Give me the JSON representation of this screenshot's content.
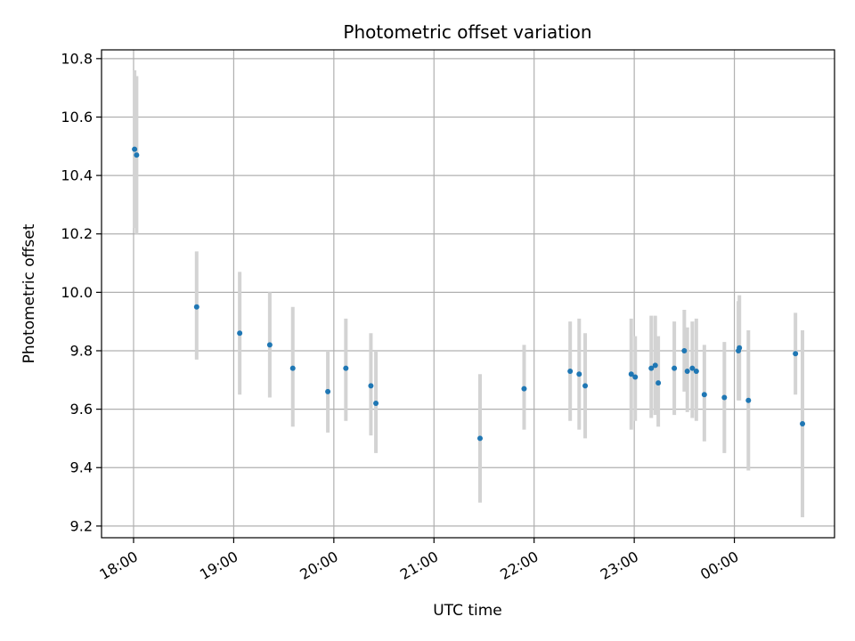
{
  "chart_data": {
    "type": "scatter",
    "title": "Photometric offset variation",
    "xlabel": "UTC time",
    "ylabel": "Photometric offset",
    "grid": true,
    "legend": "none",
    "x_axis_unit": "hours since 18:00 UTC",
    "xlim": [
      -0.32,
      7.0
    ],
    "ylim": [
      9.16,
      10.83
    ],
    "x_ticks": [
      0,
      1,
      2,
      3,
      4,
      5,
      6
    ],
    "x_tick_labels": [
      "18:00",
      "19:00",
      "20:00",
      "21:00",
      "22:00",
      "23:00",
      "00:00"
    ],
    "y_ticks": [
      9.2,
      9.4,
      9.6,
      9.8,
      10.0,
      10.2,
      10.4,
      10.6,
      10.8
    ],
    "y_tick_labels": [
      "9.2",
      "9.4",
      "9.6",
      "9.8",
      "10.0",
      "10.2",
      "10.4",
      "10.6",
      "10.8"
    ],
    "marker_color": "#1f77b4",
    "errorbar_color": "#d3d3d3",
    "points": [
      {
        "x": 0.01,
        "y": 10.49,
        "ylo": 10.22,
        "yhi": 10.76
      },
      {
        "x": 0.03,
        "y": 10.47,
        "ylo": 10.2,
        "yhi": 10.74
      },
      {
        "x": 0.63,
        "y": 9.95,
        "ylo": 9.77,
        "yhi": 10.14
      },
      {
        "x": 1.06,
        "y": 9.86,
        "ylo": 9.65,
        "yhi": 10.07
      },
      {
        "x": 1.36,
        "y": 9.82,
        "ylo": 9.64,
        "yhi": 10.0
      },
      {
        "x": 1.59,
        "y": 9.74,
        "ylo": 9.54,
        "yhi": 9.95
      },
      {
        "x": 1.94,
        "y": 9.66,
        "ylo": 9.52,
        "yhi": 9.8
      },
      {
        "x": 2.12,
        "y": 9.74,
        "ylo": 9.56,
        "yhi": 9.91
      },
      {
        "x": 2.37,
        "y": 9.68,
        "ylo": 9.51,
        "yhi": 9.86
      },
      {
        "x": 2.42,
        "y": 9.62,
        "ylo": 9.45,
        "yhi": 9.8
      },
      {
        "x": 3.46,
        "y": 9.5,
        "ylo": 9.28,
        "yhi": 9.72
      },
      {
        "x": 3.9,
        "y": 9.67,
        "ylo": 9.53,
        "yhi": 9.82
      },
      {
        "x": 4.36,
        "y": 9.73,
        "ylo": 9.56,
        "yhi": 9.9
      },
      {
        "x": 4.45,
        "y": 9.72,
        "ylo": 9.53,
        "yhi": 9.91
      },
      {
        "x": 4.51,
        "y": 9.68,
        "ylo": 9.5,
        "yhi": 9.86
      },
      {
        "x": 4.97,
        "y": 9.72,
        "ylo": 9.53,
        "yhi": 9.91
      },
      {
        "x": 5.01,
        "y": 9.71,
        "ylo": 9.56,
        "yhi": 9.85
      },
      {
        "x": 5.17,
        "y": 9.74,
        "ylo": 9.57,
        "yhi": 9.92
      },
      {
        "x": 5.21,
        "y": 9.75,
        "ylo": 9.58,
        "yhi": 9.92
      },
      {
        "x": 5.24,
        "y": 9.69,
        "ylo": 9.54,
        "yhi": 9.85
      },
      {
        "x": 5.4,
        "y": 9.74,
        "ylo": 9.58,
        "yhi": 9.9
      },
      {
        "x": 5.5,
        "y": 9.8,
        "ylo": 9.66,
        "yhi": 9.94
      },
      {
        "x": 5.53,
        "y": 9.73,
        "ylo": 9.59,
        "yhi": 9.88
      },
      {
        "x": 5.58,
        "y": 9.74,
        "ylo": 9.57,
        "yhi": 9.9
      },
      {
        "x": 5.62,
        "y": 9.73,
        "ylo": 9.56,
        "yhi": 9.91
      },
      {
        "x": 5.7,
        "y": 9.65,
        "ylo": 9.49,
        "yhi": 9.82
      },
      {
        "x": 5.9,
        "y": 9.64,
        "ylo": 9.45,
        "yhi": 9.83
      },
      {
        "x": 6.04,
        "y": 9.8,
        "ylo": 9.63,
        "yhi": 9.97
      },
      {
        "x": 6.05,
        "y": 9.81,
        "ylo": 9.63,
        "yhi": 9.99
      },
      {
        "x": 6.14,
        "y": 9.63,
        "ylo": 9.39,
        "yhi": 9.87
      },
      {
        "x": 6.61,
        "y": 9.79,
        "ylo": 9.65,
        "yhi": 9.93
      },
      {
        "x": 6.68,
        "y": 9.55,
        "ylo": 9.23,
        "yhi": 9.87
      }
    ]
  }
}
